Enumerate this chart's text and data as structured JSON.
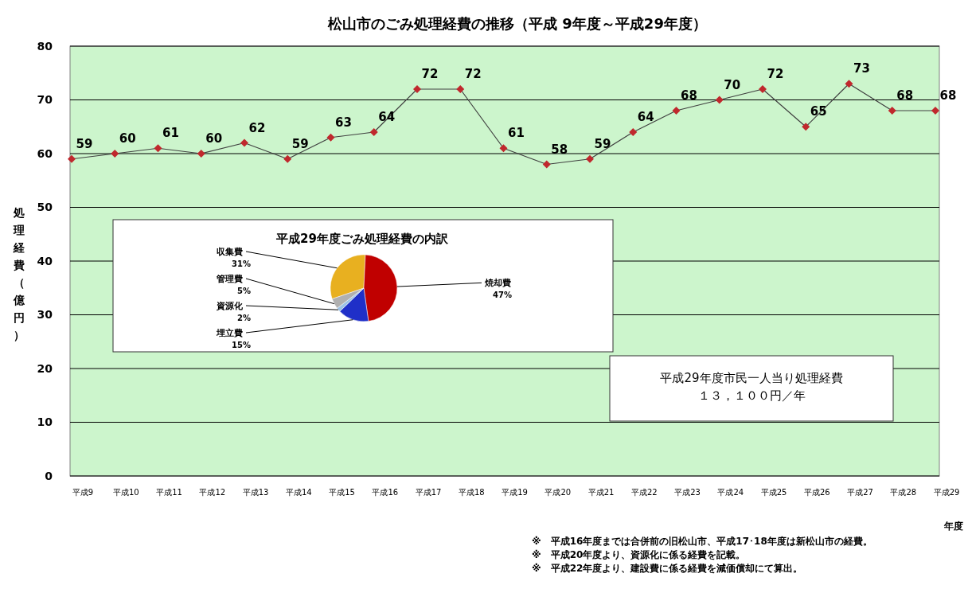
{
  "chart_data": [
    {
      "type": "line",
      "title": "松山市のごみ処理経費の推移（平成 9年度～平成29年度）",
      "xlabel": "年度",
      "ylabel": "処理経費（億円）",
      "categories": [
        "平成9",
        "平成10",
        "平成11",
        "平成12",
        "平成13",
        "平成14",
        "平成15",
        "平成16",
        "平成17",
        "平成18",
        "平成19",
        "平成20",
        "平成21",
        "平成22",
        "平成23",
        "平成24",
        "平成25",
        "平成26",
        "平成27",
        "平成28",
        "平成29"
      ],
      "series": [
        {
          "color": "#404040",
          "values": [
            59,
            60,
            61,
            60,
            62,
            59,
            63,
            64,
            72,
            72,
            61,
            58,
            59,
            64,
            68,
            70,
            72,
            65,
            73,
            68,
            68
          ]
        }
      ],
      "marker": "diamond",
      "data_labels": true,
      "grid": "y",
      "ylim": [
        0,
        80
      ],
      "yticks": [
        0,
        10,
        20,
        30,
        40,
        50,
        60,
        70,
        80
      ],
      "annotations": [
        "平成29年度市民一人当り処理経費",
        "１３，１００円／年",
        "※　平成16年度までは合併前の旧松山市、平成17･18年度は新松山市の経費。",
        "※　平成20年度より、資源化に係る経費を記載。",
        "※　平成22年度より、建設費に係る経費を減価償却にて算出。"
      ]
    },
    {
      "type": "pie",
      "title": "平成29年度ごみ処理経費の内訳",
      "categories": [
        "収集費",
        "焼却費",
        "埋立費",
        "資源化",
        "管理費"
      ],
      "values": [
        31,
        47,
        15,
        2,
        5
      ],
      "value_labels": [
        "31%",
        "47%",
        "15%",
        "2%",
        "5%"
      ],
      "colors": [
        "#e8b020",
        "#c00000",
        "#1f2fc8",
        "#9dc3e6",
        "#b0b0b0"
      ]
    }
  ]
}
